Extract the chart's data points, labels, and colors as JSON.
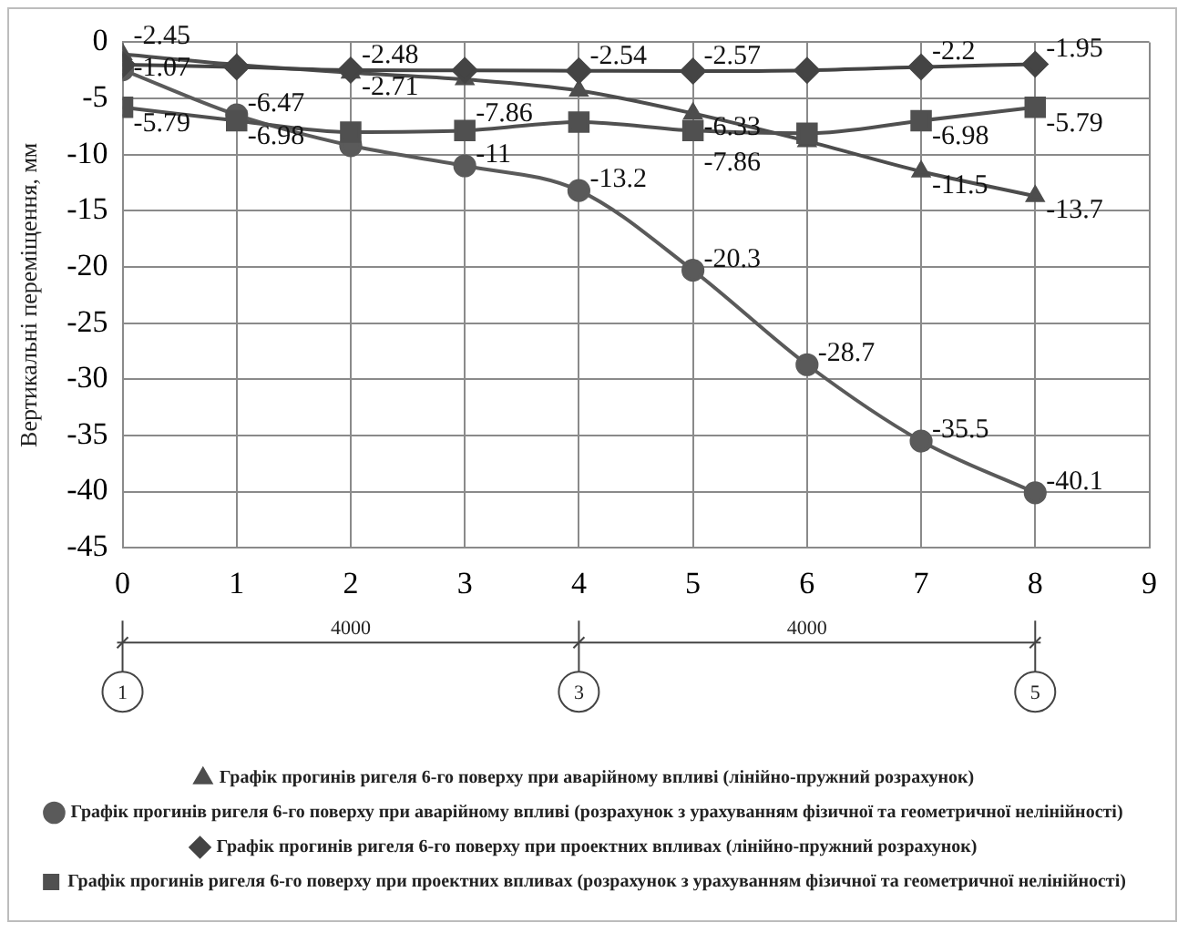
{
  "chart_data": {
    "type": "line",
    "ylabel": "Вертикальні переміщення, мм",
    "x": [
      0,
      1,
      2,
      3,
      4,
      5,
      6,
      7,
      8
    ],
    "xlim": [
      0,
      9
    ],
    "xticks": [
      0,
      1,
      2,
      3,
      4,
      5,
      6,
      7,
      8,
      9
    ],
    "ylim": [
      -45,
      0
    ],
    "yticks": [
      0,
      -5,
      -10,
      -15,
      -20,
      -25,
      -30,
      -35,
      -40,
      -45
    ],
    "grid": true,
    "legend": "bottom",
    "line_style": "solid",
    "series": [
      {
        "name": "Графік прогинів ригеля 6-го поверху при аварійному впливі (лінійно-пружний розрахунок)",
        "color": "#4d4d4d",
        "marker": "triangle",
        "values": [
          -1.07,
          -2.0,
          -2.71,
          -3.3,
          -4.3,
          -6.33,
          -8.8,
          -11.5,
          -13.7
        ],
        "value_labels": [
          "-1.07",
          null,
          "-2.71",
          null,
          null,
          "-6.33",
          null,
          "-11.5",
          "-13.7"
        ]
      },
      {
        "name": "Графік прогинів ригеля 6-го поверху при аварійному впливі (розрахунок з урахуванням фізичної та геометричної нелінійності)",
        "color": "#5a5a5a",
        "marker": "circle",
        "values": [
          -2.45,
          -6.47,
          -9.2,
          -11,
          -13.2,
          -20.3,
          -28.7,
          -35.5,
          -40.1
        ],
        "value_labels": [
          "-2.45",
          "-6.47",
          null,
          "-11",
          "-13.2",
          "-20.3",
          "-28.7",
          "-35.5",
          "-40.1"
        ]
      },
      {
        "name": "Графік прогинів ригеля 6-го поверху при проектних впливах (лінійно-пружний розрахунок)",
        "color": "#444444",
        "marker": "diamond",
        "values": [
          -2.0,
          -2.2,
          -2.48,
          -2.5,
          -2.54,
          -2.57,
          -2.5,
          -2.2,
          -1.95
        ],
        "value_labels": [
          null,
          null,
          "-2.48",
          null,
          "-2.54",
          "-2.57",
          null,
          "-2.2",
          "-1.95"
        ]
      },
      {
        "name": "Графік прогинів ригеля 6-го поверху при проектних впливах (розрахунок з урахуванням фізичної та геометричної нелінійності)",
        "color": "#505050",
        "marker": "square",
        "values": [
          -5.79,
          -6.98,
          -8.0,
          -7.86,
          -7.1,
          -7.86,
          -8.1,
          -6.98,
          -5.79
        ],
        "value_labels": [
          "-5.79",
          "-6.98",
          null,
          "-7.86",
          null,
          "-7.86",
          null,
          "-6.98",
          "-5.79"
        ]
      }
    ],
    "annotations": [
      {
        "text": "1",
        "x": 0
      },
      "4000",
      {
        "text": "3",
        "x": 4
      },
      "4000",
      {
        "text": "5",
        "x": 8
      }
    ]
  }
}
